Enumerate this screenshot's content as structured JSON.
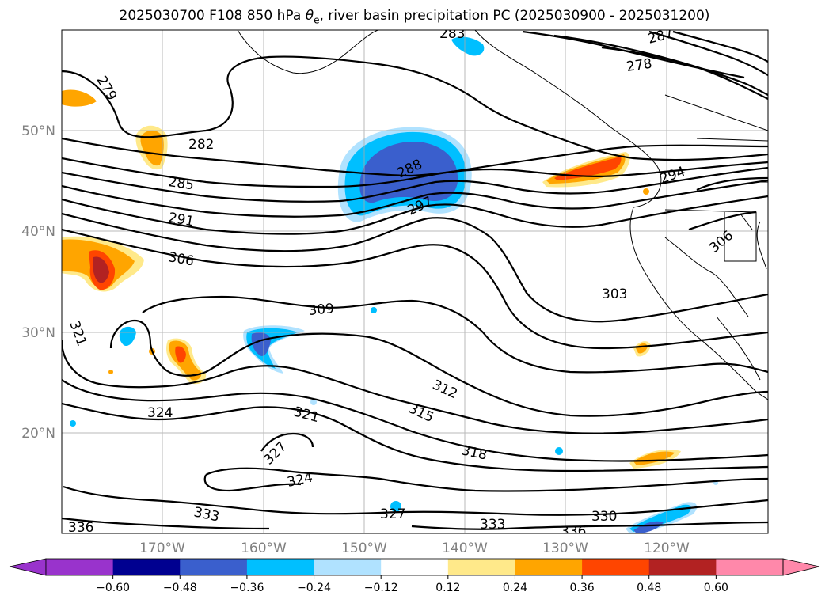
{
  "title_main": "2025030700 F108 850 hPa ",
  "title_symbol": "θ",
  "title_sub": "e",
  "title_rest": ", river basin precipitation PC (2025030900 - 2025031200)",
  "lat_labels": [
    "50°N",
    "40°N",
    "30°N",
    "20°N"
  ],
  "lon_labels": [
    "170°W",
    "160°W",
    "150°W",
    "140°W",
    "130°W",
    "120°W"
  ],
  "contour_labels": [
    "279",
    "282",
    "285",
    "288",
    "291",
    "297",
    "294",
    "306",
    "306",
    "309",
    "303",
    "321",
    "312",
    "315",
    "324",
    "321",
    "327",
    "318",
    "324",
    "327",
    "333",
    "333",
    "330",
    "336",
    "336",
    "283",
    "287",
    "278"
  ],
  "colorbar": {
    "ticks": [
      "−0.60",
      "−0.48",
      "−0.36",
      "−0.24",
      "−0.12",
      "0.12",
      "0.24",
      "0.36",
      "0.48",
      "0.60"
    ],
    "colors": [
      "#9933cc",
      "#000090",
      "#3a5fcd",
      "#00bfff",
      "#b0e2ff",
      "#ffffff",
      "#ffe98a",
      "#ffa500",
      "#ff4500",
      "#b22222",
      "#ff88aa"
    ]
  }
}
